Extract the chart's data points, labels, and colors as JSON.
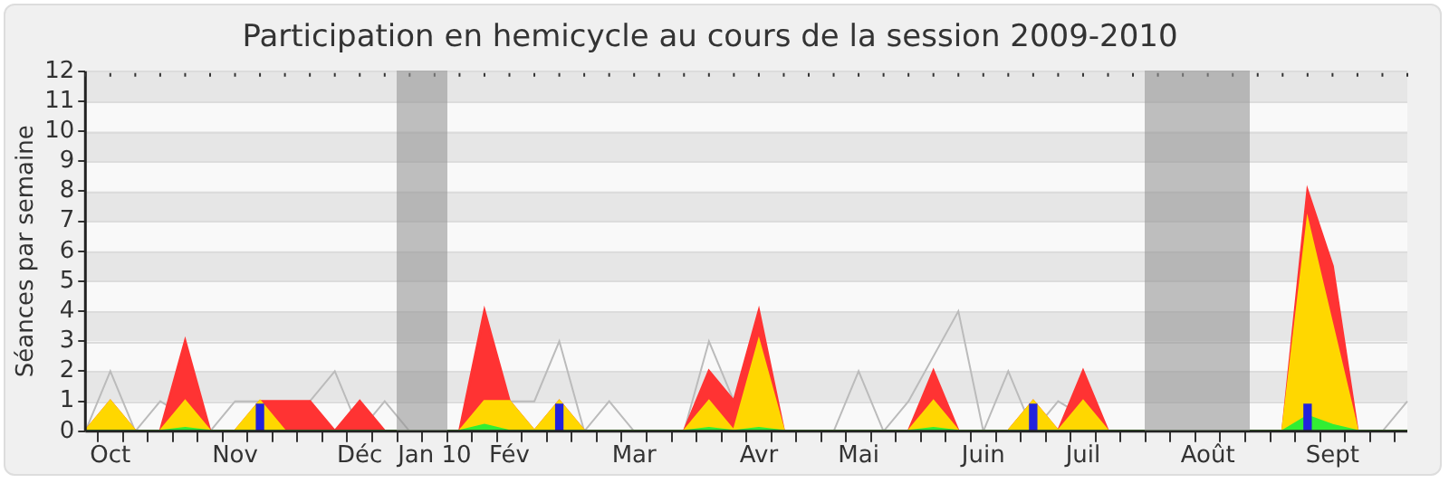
{
  "chart_data": {
    "type": "area",
    "title": "Participation en hemicycle au cours de la session 2009-2010",
    "ylabel": "Séances par semaine",
    "categories": [
      null,
      "Oct",
      null,
      null,
      null,
      null,
      "Nov",
      null,
      null,
      null,
      null,
      "Déc",
      null,
      null,
      "Jan 10",
      null,
      null,
      "Fév",
      null,
      null,
      null,
      null,
      "Mar",
      null,
      null,
      null,
      null,
      "Avr",
      null,
      null,
      null,
      "Mai",
      null,
      null,
      null,
      null,
      "Juin",
      null,
      null,
      null,
      "Juil",
      null,
      null,
      null,
      null,
      "Août",
      null,
      null,
      null,
      null,
      "Sept",
      null,
      null,
      null
    ],
    "ylim": [
      0,
      12
    ],
    "yticks": [
      0,
      1,
      2,
      3,
      4,
      5,
      6,
      7,
      8,
      9,
      10,
      11,
      12
    ],
    "grid": "y",
    "legend": false,
    "series": [
      {
        "type": "line",
        "color": "#bbbbbb",
        "values": [
          0,
          2,
          0,
          1,
          null,
          0,
          1,
          1,
          0,
          1,
          2,
          0,
          1,
          0,
          0,
          0,
          null,
          1,
          1,
          3,
          0,
          1,
          0,
          0,
          0,
          3,
          1,
          null,
          0,
          0,
          0,
          2,
          0,
          1,
          null,
          4,
          0,
          2,
          0,
          1,
          null,
          0,
          0,
          0,
          0,
          0,
          0,
          0,
          0,
          null,
          null,
          0,
          0,
          1
        ]
      },
      {
        "color": "#ff3333",
        "values": [
          0,
          1,
          0,
          0,
          3,
          0,
          0,
          1,
          1,
          1,
          0,
          1,
          0,
          0,
          0,
          0,
          4,
          1,
          0,
          1,
          0,
          0,
          0,
          0,
          0,
          2,
          1,
          4,
          0,
          0,
          0,
          0,
          0,
          0,
          2,
          0,
          0,
          0,
          1,
          0,
          2,
          0,
          0,
          0,
          0,
          0,
          0,
          0,
          0,
          8,
          5.5,
          0,
          0,
          0
        ]
      },
      {
        "color": "#ffd700",
        "values": [
          0,
          1,
          0,
          0,
          1,
          0,
          0,
          1,
          0,
          0,
          0,
          0,
          0,
          0,
          0,
          0,
          1,
          1,
          0,
          1,
          0,
          0,
          0,
          0,
          0,
          1,
          0,
          3,
          0,
          0,
          0,
          0,
          0,
          0,
          1,
          0,
          0,
          0,
          1,
          0,
          1,
          0,
          0,
          0,
          0,
          0,
          0,
          0,
          0,
          7,
          3.5,
          0,
          0,
          0
        ]
      },
      {
        "color": "#33ee33",
        "values": [
          0,
          0,
          0,
          0,
          0.1,
          0,
          0,
          0,
          0,
          0,
          0,
          0,
          0,
          0,
          0,
          0,
          0.2,
          0,
          0,
          0,
          0,
          0,
          0,
          0,
          0,
          0.1,
          0,
          0.1,
          0,
          0,
          0,
          0,
          0,
          0,
          0.1,
          0,
          0,
          0,
          0,
          0,
          0,
          0,
          0,
          0,
          0,
          0,
          0,
          0,
          0,
          0.5,
          0.2,
          0,
          0,
          0
        ]
      },
      {
        "type": "bar",
        "color": "#2222dd",
        "values": [
          null,
          null,
          null,
          null,
          null,
          null,
          null,
          0.9,
          null,
          null,
          null,
          null,
          null,
          null,
          null,
          null,
          null,
          null,
          null,
          0.9,
          null,
          null,
          null,
          null,
          null,
          null,
          null,
          null,
          null,
          null,
          null,
          null,
          null,
          null,
          null,
          null,
          null,
          null,
          0.9,
          null,
          null,
          null,
          null,
          null,
          null,
          null,
          null,
          null,
          null,
          0.9,
          null,
          null,
          null,
          null
        ]
      }
    ]
  }
}
